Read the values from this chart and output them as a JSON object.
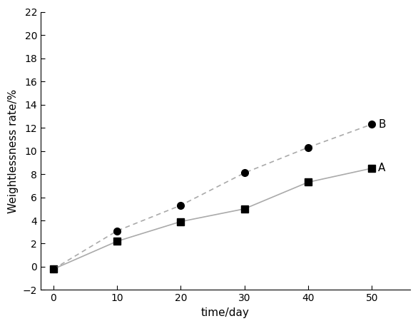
{
  "series_A": {
    "x": [
      0,
      10,
      20,
      30,
      40,
      50
    ],
    "y": [
      -0.2,
      2.2,
      3.9,
      5.0,
      7.3,
      8.5
    ],
    "label": "A",
    "marker": "s",
    "linestyle": "-",
    "line_color": "#aaaaaa",
    "marker_color": "#000000"
  },
  "series_B": {
    "x": [
      0,
      10,
      20,
      30,
      40,
      50
    ],
    "y": [
      -0.2,
      3.1,
      5.3,
      8.1,
      10.3,
      12.3
    ],
    "label": "B",
    "marker": "o",
    "linestyle": "--",
    "line_color": "#aaaaaa",
    "marker_color": "#000000"
  },
  "xlabel": "time/day",
  "ylabel": "Weightlessness rate/%",
  "xlim": [
    -2,
    56
  ],
  "ylim": [
    -2,
    22
  ],
  "xticks": [
    0,
    10,
    20,
    30,
    40,
    50
  ],
  "yticks": [
    -2,
    0,
    2,
    4,
    6,
    8,
    10,
    12,
    14,
    16,
    18,
    20,
    22
  ],
  "background_color": "#ffffff",
  "markersize": 7,
  "linewidth": 1.2,
  "label_fontsize": 11,
  "tick_fontsize": 10,
  "spine_color": "#000000"
}
